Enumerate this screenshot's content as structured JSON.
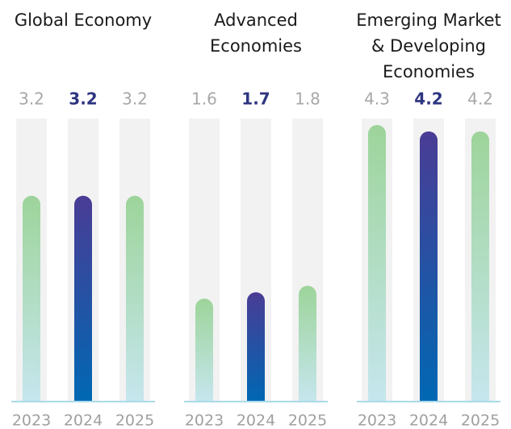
{
  "chart_data": [
    {
      "type": "bar",
      "title": [
        "Global Economy"
      ],
      "categories": [
        "2023",
        "2024",
        "2025"
      ],
      "values": [
        3.2,
        3.2,
        3.2
      ],
      "ylim": [
        0,
        4.4
      ],
      "color": [
        "#9dd49a",
        "#c6e6ee"
      ],
      "highlight": 1,
      "highlight_color": [
        "#4a3c95",
        "#0068b3"
      ]
    },
    {
      "type": "bar",
      "title": [
        "Advanced",
        "Economies"
      ],
      "categories": [
        "2023",
        "2024",
        "2025"
      ],
      "values": [
        1.6,
        1.7,
        1.8
      ],
      "ylim": [
        0,
        4.4
      ],
      "color": [
        "#9dd49a",
        "#c6e6ee"
      ],
      "highlight": 1,
      "highlight_color": [
        "#4a3c95",
        "#0068b3"
      ]
    },
    {
      "type": "bar",
      "title": [
        "Emerging Market",
        "& Developing",
        "Economies"
      ],
      "categories": [
        "2023",
        "2024",
        "2025"
      ],
      "values": [
        4.3,
        4.2,
        4.2
      ],
      "ylim": [
        0,
        4.4
      ],
      "color": [
        "#9dd49a",
        "#c6e6ee"
      ],
      "highlight": 1,
      "highlight_color": [
        "#4a3c95",
        "#0068b3"
      ]
    }
  ]
}
